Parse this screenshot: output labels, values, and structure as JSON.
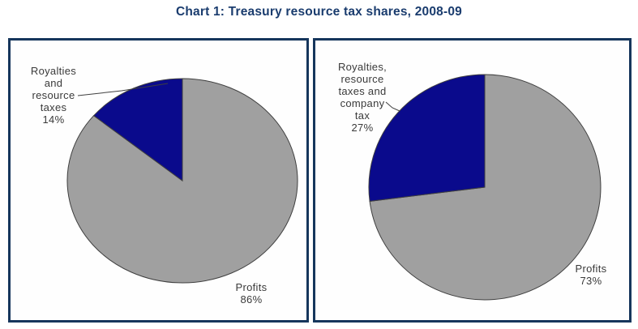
{
  "page": {
    "title": "Chart 1: Treasury resource tax shares, 2008-09"
  },
  "colors": {
    "navy_slice": "#0a0a8c",
    "gray_slice": "#a0a0a0",
    "slice_outline": "#3f3f3f",
    "panel_border": "#16365c",
    "title_text": "#1a3c6e",
    "label_text": "#3a3a3a"
  },
  "chart_data": [
    {
      "type": "pie",
      "panel": "left",
      "start_angle_deg": 0,
      "direction": "clockwise",
      "legend": "none",
      "slices": [
        {
          "label": "Profits",
          "value": 86,
          "color": "#a0a0a0"
        },
        {
          "label": "Royalties and resource taxes",
          "value": 14,
          "color": "#0a0a8c"
        }
      ],
      "callout_label": "Royalties\nand\nresource\ntaxes\n14%",
      "profits_label": "Profits\n86%"
    },
    {
      "type": "pie",
      "panel": "right",
      "start_angle_deg": 0,
      "direction": "clockwise",
      "legend": "none",
      "slices": [
        {
          "label": "Profits",
          "value": 73,
          "color": "#a0a0a0"
        },
        {
          "label": "Royalties, resource taxes and company tax",
          "value": 27,
          "color": "#0a0a8c"
        }
      ],
      "callout_label": "Royalties,\nresource\ntaxes and\ncompany\ntax\n27%",
      "profits_label": "Profits\n73%"
    }
  ]
}
